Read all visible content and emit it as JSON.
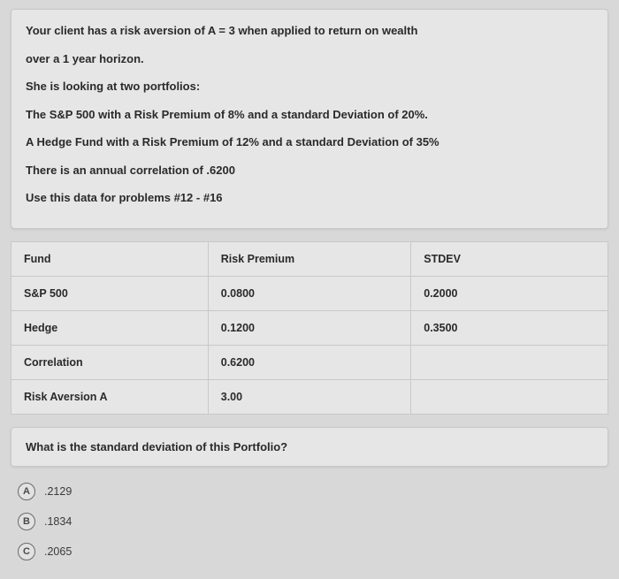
{
  "problem": {
    "lines": [
      "Your client has a risk aversion of A = 3 when applied to return on wealth",
      "over a 1 year horizon.",
      "She is looking at two portfolios:",
      "The S&P 500 with a Risk Premium of 8% and a standard Deviation of 20%.",
      "A Hedge Fund with a Risk Premium of 12% and a standard Deviation of 35%",
      "There is an annual correlation of .6200",
      "Use this data for problems #12 - #16"
    ]
  },
  "table": {
    "header": {
      "fund": "Fund",
      "risk_premium": "Risk Premium",
      "stdev": "STDEV"
    },
    "rows": [
      {
        "fund": "S&P 500",
        "risk_premium": "0.0800",
        "stdev": "0.2000"
      },
      {
        "fund": "Hedge",
        "risk_premium": "0.1200",
        "stdev": "0.3500"
      },
      {
        "fund": "Correlation",
        "risk_premium": "0.6200",
        "stdev": ""
      },
      {
        "fund": "Risk Aversion A",
        "risk_premium": "3.00",
        "stdev": ""
      }
    ]
  },
  "question": "What is the standard deviation of this Portfolio?",
  "options": [
    {
      "letter": "A",
      "text": ".2129"
    },
    {
      "letter": "B",
      "text": ".1834"
    },
    {
      "letter": "C",
      "text": ".2065"
    }
  ]
}
